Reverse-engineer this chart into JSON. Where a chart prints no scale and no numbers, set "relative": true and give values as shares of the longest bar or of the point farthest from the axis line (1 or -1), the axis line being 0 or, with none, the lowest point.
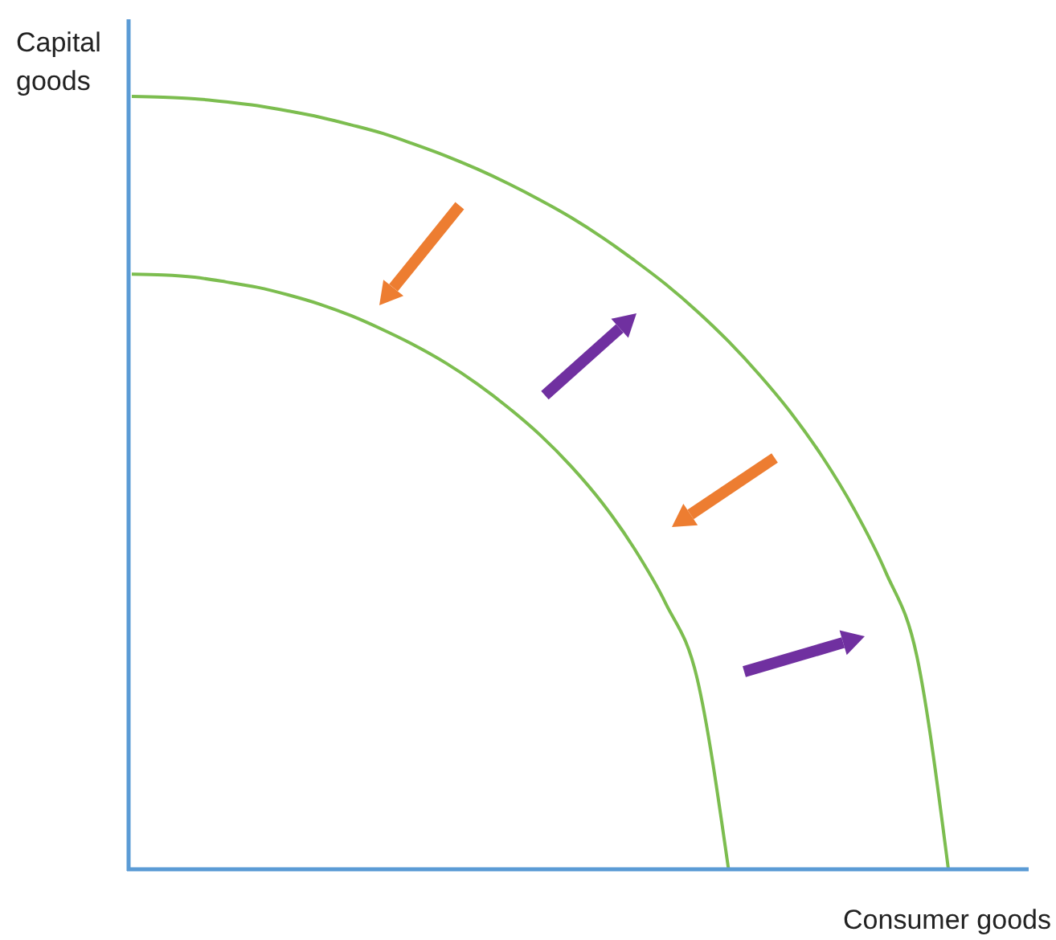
{
  "chart_data": {
    "type": "line",
    "xlabel": "Consumer goods",
    "ylabel": "Capital goods",
    "relative": true,
    "categories": [
      null,
      null,
      null,
      null,
      null,
      null,
      null,
      null,
      null,
      null,
      null,
      null,
      null,
      null,
      null,
      null,
      null,
      null,
      null,
      null,
      null,
      null,
      null,
      null,
      null,
      null,
      null,
      null,
      null
    ],
    "series": [
      {
        "color": "#7cbd4f",
        "values": [
          1,
          0.999,
          0.997,
          0.993,
          0.988,
          0.981,
          0.973,
          0.963,
          0.952,
          0.938,
          0.923,
          0.906,
          0.887,
          0.866,
          0.843,
          0.817,
          0.788,
          0.757,
          0.722,
          0.683,
          0.639,
          0.59,
          0.533,
          0.466,
          0.385,
          0.275,
          0,
          null,
          null
        ]
      },
      {
        "color": "#7cbd4f",
        "values": [
          0.77,
          0.769,
          0.766,
          0.76,
          0.753,
          0.743,
          0.731,
          0.716,
          0.698,
          0.678,
          0.655,
          0.628,
          0.597,
          0.562,
          0.521,
          0.473,
          0.415,
          0.344,
          0.247,
          0,
          null,
          null,
          null,
          null,
          null,
          null,
          null,
          null,
          null
        ]
      }
    ]
  }
}
